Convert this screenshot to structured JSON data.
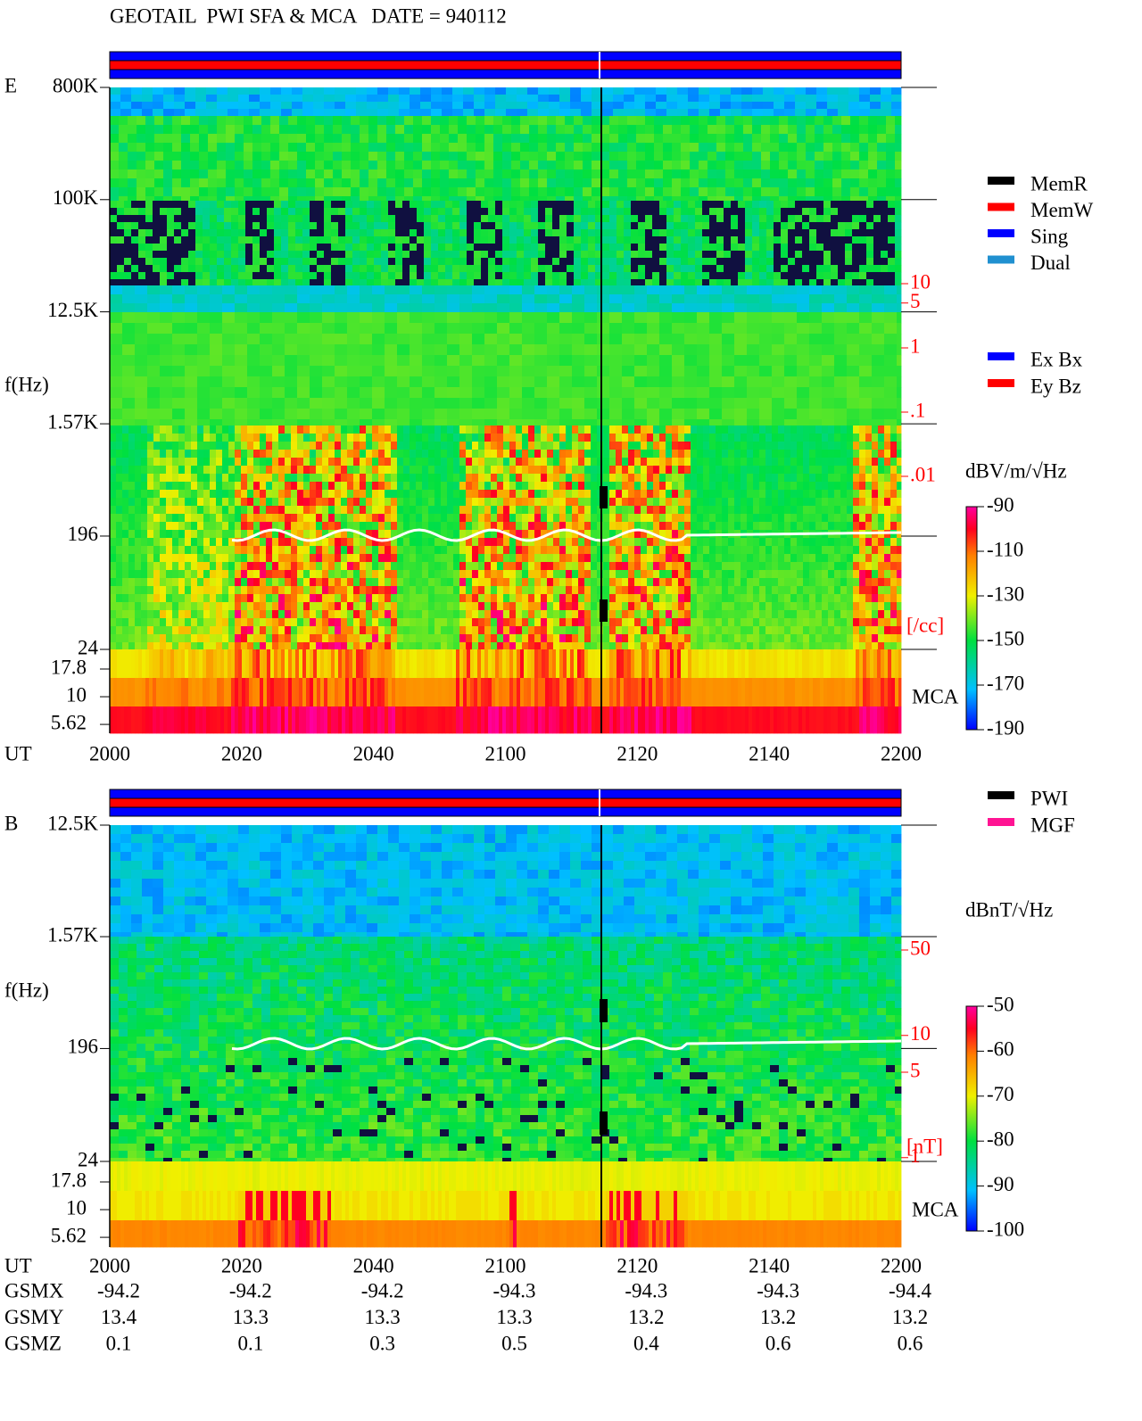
{
  "header": {
    "title": "GEOTAIL  PWI SFA & MCA   DATE = 940112"
  },
  "panels": [
    {
      "component": "E",
      "freq_label": "f(Hz)",
      "freq_lim": [
        24,
        800000
      ],
      "freq_ticks": [
        {
          "value": 800000,
          "label": "800K"
        },
        {
          "value": 100000,
          "label": "100K"
        },
        {
          "value": 12500,
          "label": "12.5K"
        },
        {
          "value": 1570,
          "label": "1.57K"
        },
        196,
        24
      ],
      "mca_ticks": [
        17.8,
        10,
        5.62
      ],
      "mca_label": "MCA",
      "time_label": "UT",
      "time_ticks": [
        "2000",
        "2020",
        "2040",
        "2100",
        "2120",
        "2140",
        "2200"
      ],
      "density_ticks": [
        10,
        5,
        1,
        {
          "value": 0.1,
          "label": ".1"
        },
        {
          "value": 0.01,
          "label": ".01"
        }
      ],
      "density_unit": "[/cc]",
      "colorbar": {
        "unit": "dBV/m/√Hz",
        "lim": [
          -190,
          -90
        ],
        "ticks": [
          -90,
          -110,
          -130,
          -150,
          -170,
          -190
        ]
      }
    },
    {
      "component": "B",
      "freq_label": "f(Hz)",
      "freq_lim": [
        24,
        12500
      ],
      "freq_ticks": [
        {
          "value": 12500,
          "label": "12.5K"
        },
        {
          "value": 1570,
          "label": "1.57K"
        },
        196,
        24
      ],
      "mca_ticks": [
        17.8,
        10,
        5.62
      ],
      "mca_label": "MCA",
      "time_label": "UT",
      "time_ticks": [
        "2000",
        "2020",
        "2040",
        "2100",
        "2120",
        "2140",
        "2200"
      ],
      "density_ticks": [
        50,
        10,
        5,
        1
      ],
      "density_unit": "[nT]",
      "colorbar": {
        "unit": "dBnT/√Hz",
        "lim": [
          -100,
          -50
        ],
        "ticks": [
          -50,
          -60,
          -70,
          -80,
          -90,
          -100
        ]
      }
    }
  ],
  "legends": {
    "memory": [
      {
        "label": "MemR",
        "color": "#000000"
      },
      {
        "label": "MemW",
        "color": "#ff0000"
      },
      {
        "label": "Sing",
        "color": "#0000ff"
      },
      {
        "label": "Dual",
        "color": "#2090d0"
      }
    ],
    "components": [
      {
        "label": "Ex Bx",
        "color": "#0000ff"
      },
      {
        "label": "Ey Bz",
        "color": "#ff0000"
      }
    ],
    "instruments": [
      {
        "label": "PWI",
        "color": "#000000"
      },
      {
        "label": "MGF",
        "color": "#ff1493"
      }
    ]
  },
  "orbit": {
    "rows": [
      {
        "name": "GSMX",
        "values": [
          -94.2,
          -94.2,
          -94.2,
          -94.3,
          -94.3,
          -94.3,
          -94.4
        ]
      },
      {
        "name": "GSMY",
        "values": [
          13.4,
          13.3,
          13.3,
          13.3,
          13.2,
          13.2,
          13.2
        ]
      },
      {
        "name": "GSMZ",
        "values": [
          0.1,
          0.1,
          0.3,
          0.5,
          0.4,
          0.6,
          0.6
        ]
      }
    ]
  }
}
